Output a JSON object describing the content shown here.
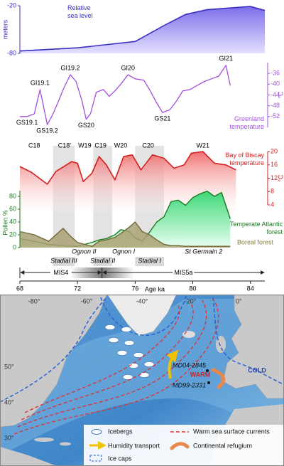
{
  "chart_data": [
    {
      "type": "area",
      "ylabel": "meters",
      "xlim": [
        68,
        85
      ],
      "ylim": [
        -80,
        -20
      ],
      "yticks": [
        -80,
        -20
      ],
      "x": [
        68,
        72,
        76,
        78,
        79.5,
        81,
        84,
        85
      ],
      "series": [
        {
          "name": "Relative sea level",
          "color": "#3a2fc4",
          "values": [
            -77,
            -73,
            -65,
            -45,
            -31,
            -25,
            -21,
            -26
          ]
        }
      ]
    },
    {
      "type": "line",
      "ylabel": "°C",
      "xlim": [
        68,
        85
      ],
      "ylim": [
        -56,
        -32
      ],
      "yticks": [
        -52,
        -48,
        -44,
        -40,
        -36
      ],
      "x": [
        68,
        68.5,
        69,
        69.4,
        69.9,
        70.3,
        70.7,
        71,
        71.5,
        71.9,
        72.3,
        72.6,
        72.9,
        73.3,
        73.8,
        74.2,
        74.6,
        75,
        75.5,
        76,
        76.6,
        77,
        77.5,
        77.9,
        78.4,
        78.9,
        79.3,
        79.8,
        80.3,
        80.8,
        81.3,
        81.8,
        82.3,
        82.6
      ],
      "series": [
        {
          "name": "Greenland temperature",
          "color": "#a24ee0",
          "values": [
            -52,
            -52,
            -51,
            -42,
            -55,
            -51,
            -46,
            -42,
            -36.5,
            -39,
            -46,
            -53,
            -51,
            -43,
            -42,
            -44.5,
            -42.5,
            -40,
            -36.5,
            -38,
            -38.5,
            -42,
            -47,
            -50.5,
            -49.5,
            -46,
            -42.5,
            -42,
            -40.5,
            -39,
            -38,
            -37,
            -33,
            -40.5
          ]
        }
      ],
      "annotations": [
        {
          "label": "GS19.1",
          "age": 68.5
        },
        {
          "label": "GI19.1",
          "age": 69.4
        },
        {
          "label": "GS19.2",
          "age": 69.9
        },
        {
          "label": "GI19.2",
          "age": 71.5
        },
        {
          "label": "GS20",
          "age": 72.6
        },
        {
          "label": "GI20",
          "age": 75.5
        },
        {
          "label": "GS21",
          "age": 77.9
        },
        {
          "label": "GI21",
          "age": 82.3
        }
      ]
    },
    {
      "type": "line",
      "ylabel": "°C",
      "xlim": [
        68,
        85
      ],
      "ylim": [
        4,
        20
      ],
      "yticks": [
        4,
        8,
        12,
        16,
        20
      ],
      "x": [
        68,
        68.8,
        69.9,
        70.5,
        71.6,
        72,
        72.4,
        73,
        73.5,
        74,
        74.6,
        75.2,
        75.8,
        76.4,
        77.2,
        78,
        78.7,
        79.4,
        79.9,
        80.7,
        81.5,
        82.3,
        83
      ],
      "series": [
        {
          "name": "Bay of Biscay temperature",
          "color": "#d41f1f",
          "values": [
            15.5,
            13.8,
            10.2,
            14,
            17,
            16.5,
            11,
            13.5,
            18.5,
            16,
            11.5,
            18.5,
            19,
            14.5,
            19,
            18,
            15,
            16,
            19.5,
            20,
            16.5,
            16,
            14.5
          ]
        }
      ],
      "annotations": [
        {
          "label": "C18",
          "age": 69
        },
        {
          "label": "C18'",
          "age": 71.1
        },
        {
          "label": "W19",
          "age": 72.5
        },
        {
          "label": "C19",
          "age": 73.6
        },
        {
          "label": "W20",
          "age": 75
        },
        {
          "label": "C20",
          "age": 76.9
        },
        {
          "label": "W21",
          "age": 80.7
        }
      ]
    },
    {
      "type": "area",
      "ylabel": "Pollen %",
      "xlabel": "Age ka",
      "xlim": [
        68,
        85
      ],
      "xticks": [
        68,
        72,
        76,
        80,
        84
      ],
      "ylim": [
        0,
        100
      ],
      "yticks": [
        0,
        20,
        40,
        60,
        80
      ],
      "x": [
        68,
        69,
        70,
        71,
        71.5,
        72,
        73,
        73.5,
        74,
        74.6,
        75,
        75.6,
        76,
        76.5,
        77,
        77.5,
        78,
        78.5,
        79,
        79.5,
        80,
        80.5,
        81,
        81.5,
        82,
        82.6
      ],
      "series": [
        {
          "name": "Temperate Atlantic forest",
          "color": "#1b7a22",
          "fill": "#5ee08c",
          "values": [
            14,
            10,
            5,
            3,
            2,
            2,
            8,
            12,
            14,
            20,
            28,
            25,
            15,
            10,
            24,
            40,
            48,
            72,
            74,
            66,
            78,
            84,
            88,
            80,
            86,
            45
          ]
        },
        {
          "name": "Boreal forest",
          "color": "#6f6a3a",
          "fill": "#a9a173",
          "values": [
            25,
            20,
            10,
            30,
            18,
            8,
            2,
            10,
            12,
            16,
            22,
            32,
            40,
            25,
            20,
            12,
            5,
            3,
            3,
            2,
            2,
            2,
            2,
            2,
            2,
            2
          ]
        }
      ],
      "stadials": [
        {
          "label": "Stadial III",
          "start": 70.3,
          "end": 71.8
        },
        {
          "label": "Stadial II",
          "start": 73.1,
          "end": 74.4
        },
        {
          "label": "Stadial I",
          "start": 76,
          "end": 78
        }
      ],
      "interstadials": [
        {
          "label": "Ognon II",
          "start": 71.8,
          "end": 73.1
        },
        {
          "label": "Ognon I",
          "start": 74.4,
          "end": 76
        },
        {
          "label": "St Germain 2",
          "start": 78,
          "end": 83.5
        }
      ],
      "stages": [
        {
          "label": "MIS4",
          "start": 68,
          "end": 73.7
        },
        {
          "label": "MIS5a",
          "start": 73.7,
          "end": 85
        }
      ]
    }
  ],
  "map": {
    "meridians": [
      "-80°",
      "-60°",
      "-40°",
      "-20°",
      "0°"
    ],
    "parallels": [
      "50°",
      "40°",
      "30°"
    ],
    "labels": {
      "warm": "WARM",
      "cold": "COLD",
      "site1": "MD04-2845",
      "site2": "MD99-2331"
    },
    "legend": [
      "Icebergs",
      "Humidity transport",
      "Ice caps",
      "Warm sea surface currents",
      "Continental refugium"
    ]
  }
}
